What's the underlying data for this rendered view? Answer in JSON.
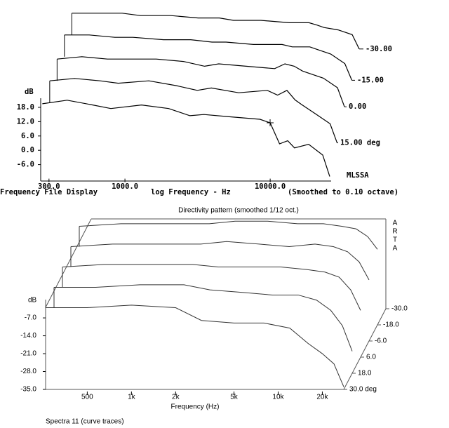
{
  "chart_data": [
    {
      "type": "line",
      "title": "Frequency File Display",
      "x_label": "log Frequency - Hz",
      "subtitle": "(Smoothed to 0.10 octave)",
      "y_label": "dB",
      "annotation": "MLSSA",
      "xscale": "log",
      "xlim": [
        263,
        25700
      ],
      "ylim": [
        -11,
        21
      ],
      "xticks": [
        {
          "value": 300,
          "label": "300.0"
        },
        {
          "value": 1000,
          "label": "1000.0"
        },
        {
          "value": 10000,
          "label": "10000.0"
        }
      ],
      "yticks": [
        {
          "value": 18,
          "label": "18.0"
        },
        {
          "value": 12,
          "label": "12.0"
        },
        {
          "value": 6,
          "label": "6.0"
        },
        {
          "value": 0,
          "label": "0.0"
        },
        {
          "value": -6,
          "label": "-6.0"
        }
      ],
      "x": [
        270,
        400,
        600,
        800,
        1300,
        2000,
        2800,
        3500,
        5400,
        8500,
        10000,
        11600,
        13200,
        14700,
        18400,
        23000,
        25700
      ],
      "series": [
        {
          "name": "-30.00",
          "color": "#000000",
          "values": [
            21,
            21,
            21,
            20,
            20,
            19,
            19,
            18,
            18,
            17,
            17,
            17,
            16,
            15,
            14,
            12,
            6
          ]
        },
        {
          "name": "-15.00",
          "color": "#000000",
          "values": [
            21,
            21,
            20,
            20,
            19,
            19,
            18,
            18,
            17,
            17,
            16,
            16,
            16,
            15,
            13,
            9,
            2
          ]
        },
        {
          "name": "0.00",
          "color": "#000000",
          "values": [
            20,
            21,
            20,
            20,
            20,
            19,
            17,
            18,
            17,
            16,
            18,
            17,
            15,
            14,
            12,
            8,
            0
          ]
        },
        {
          "name": "15.00 deg",
          "color": "#000000",
          "values": [
            20,
            21,
            20,
            19,
            20,
            18,
            16,
            17,
            15,
            16,
            14,
            16,
            12,
            10,
            6,
            2,
            -6
          ]
        },
        {
          "color": "#000000",
          "values": [
            19.5,
            21,
            19,
            17.5,
            19,
            17.5,
            14.5,
            15,
            14,
            13,
            11.5,
            2.7,
            4,
            1,
            2.5,
            -2,
            -11
          ]
        }
      ]
    },
    {
      "type": "line",
      "title": "Directivity pattern (smoothed 1/12 oct.)",
      "brand": [
        "A",
        "R",
        "T",
        "A"
      ],
      "y_label": "dB",
      "x_label": "Frequency (Hz)",
      "footer": "Spectra 11 (curve traces)",
      "xscale": "log",
      "xlim": [
        260,
        28000
      ],
      "ylim": [
        -35,
        0
      ],
      "xticks": [
        500,
        {
          "value": 1000,
          "label": "1k"
        },
        {
          "value": 2000,
          "label": "2k"
        },
        {
          "value": 5000,
          "label": "5k"
        },
        {
          "value": 10000,
          "label": "10k"
        },
        {
          "value": 20000,
          "label": "20k"
        }
      ],
      "yticks": [
        {
          "value": -7,
          "label": "-7.0"
        },
        {
          "value": -14,
          "label": "-14.0"
        },
        {
          "value": -21,
          "label": "-21.0"
        },
        {
          "value": -28,
          "label": "-28.0"
        },
        {
          "value": -35,
          "label": "-35.0"
        }
      ],
      "zlim": [
        30,
        -30
      ],
      "zticks": [
        {
          "value": 30,
          "label": "30.0 deg"
        },
        {
          "value": 18,
          "label": "18.0"
        },
        {
          "value": 6,
          "label": "6.0"
        },
        {
          "value": -6,
          "label": "-6.0"
        },
        {
          "value": -18,
          "label": "-18.0"
        },
        {
          "value": -30,
          "label": "-30.0"
        }
      ],
      "x": [
        260,
        500,
        1000,
        2000,
        3000,
        5000,
        8000,
        12000,
        16000,
        20000,
        24000,
        28000
      ],
      "series": [
        {
          "color": "#333333",
          "values": [
            -3,
            -2,
            -2,
            -2,
            -1,
            -1,
            -2,
            -2,
            -3,
            -4,
            -7,
            -12
          ]
        },
        {
          "color": "#333333",
          "values": [
            -3,
            -2,
            -2,
            -2,
            -1,
            -2,
            -3,
            -2,
            -3,
            -5,
            -9,
            -16
          ]
        },
        {
          "color": "#333333",
          "values": [
            -3,
            -2,
            -2,
            -2,
            -3,
            -3,
            -3,
            -4,
            -5,
            -7,
            -12,
            -20
          ]
        },
        {
          "color": "#333333",
          "values": [
            -3,
            -3,
            -2,
            -2,
            -4,
            -5,
            -6,
            -6,
            -8,
            -12,
            -18,
            -28
          ]
        },
        {
          "color": "#333333",
          "values": [
            -3,
            -3,
            -2,
            -3,
            -8,
            -9,
            -9,
            -11,
            -17,
            -21,
            -25,
            -34
          ]
        }
      ]
    }
  ]
}
